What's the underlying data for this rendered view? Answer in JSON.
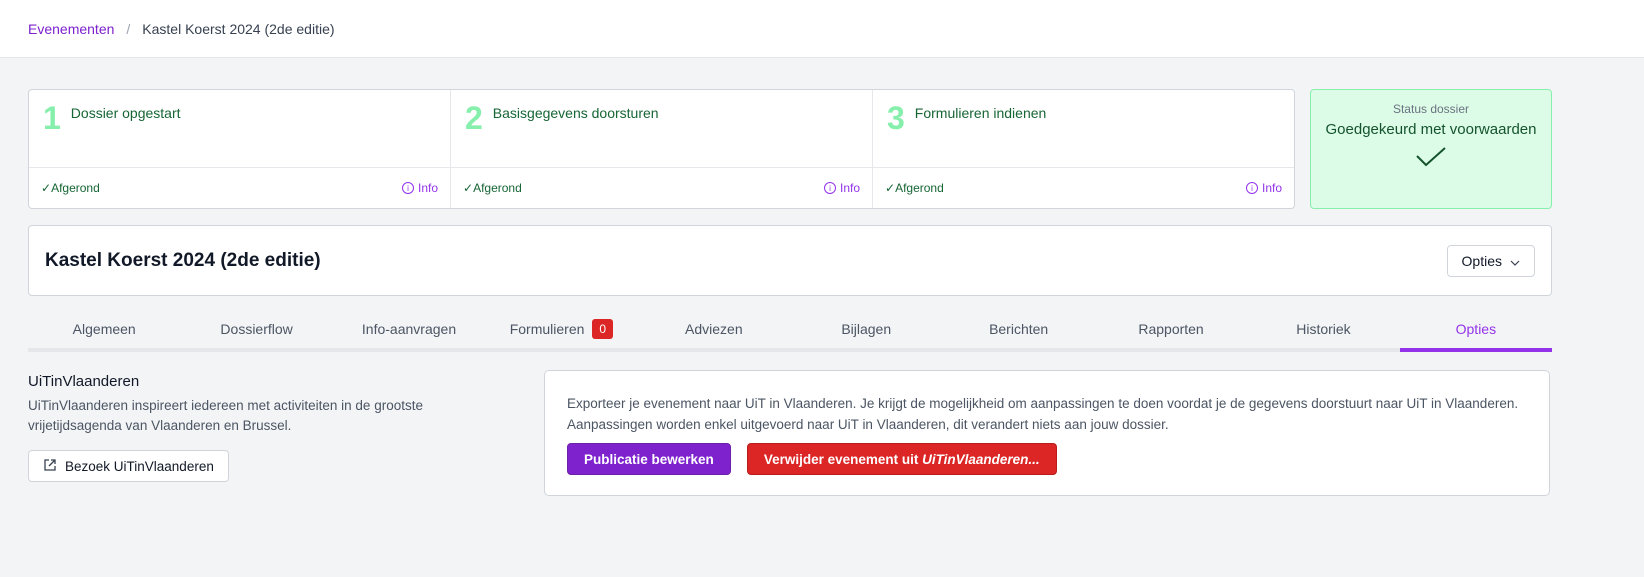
{
  "breadcrumb": {
    "parent": "Evenementen",
    "separator": "/",
    "current": "Kastel Koerst 2024 (2de editie)"
  },
  "steps": [
    {
      "number": "1",
      "title": "Dossier opgestart",
      "status": "Afgerond",
      "info": "Info"
    },
    {
      "number": "2",
      "title": "Basisgegevens doorsturen",
      "status": "Afgerond",
      "info": "Info"
    },
    {
      "number": "3",
      "title": "Formulieren indienen",
      "status": "Afgerond",
      "info": "Info"
    }
  ],
  "status": {
    "label": "Status dossier",
    "value": "Goedgekeurd met voorwaarden",
    "icon": "check-icon",
    "color": "#dcfce7"
  },
  "title": "Kastel Koerst 2024 (2de editie)",
  "options_button": "Opties",
  "tabs": [
    {
      "label": "Algemeen"
    },
    {
      "label": "Dossierflow"
    },
    {
      "label": "Info-aanvragen"
    },
    {
      "label": "Formulieren",
      "badge": "0"
    },
    {
      "label": "Adviezen"
    },
    {
      "label": "Bijlagen"
    },
    {
      "label": "Berichten"
    },
    {
      "label": "Rapporten"
    },
    {
      "label": "Historiek"
    },
    {
      "label": "Opties",
      "active": true
    }
  ],
  "uit": {
    "heading": "UiTinVlaanderen",
    "description": "UiTinVlaanderen inspireert iedereen met activiteiten in de grootste vrijetijdsagenda van Vlaanderen en Brussel.",
    "visit_button": "Bezoek UiTinVlaanderen",
    "export_text": "Exporteer je evenement naar UiT in Vlaanderen. Je krijgt de mogelijkheid om aanpassingen te doen voordat je de gegevens doorstuurt naar UiT in Vlaanderen. Aanpassingen worden enkel uitgevoerd naar UiT in Vlaanderen, dit verandert niets aan jouw dossier.",
    "edit_button": "Publicatie bewerken",
    "delete_button_prefix": "Verwijder evenement uit ",
    "delete_button_em": "UiTinVlaanderen..."
  },
  "colors": {
    "accent": "#7e22ce",
    "danger": "#dc2626",
    "success": "#86efac"
  }
}
